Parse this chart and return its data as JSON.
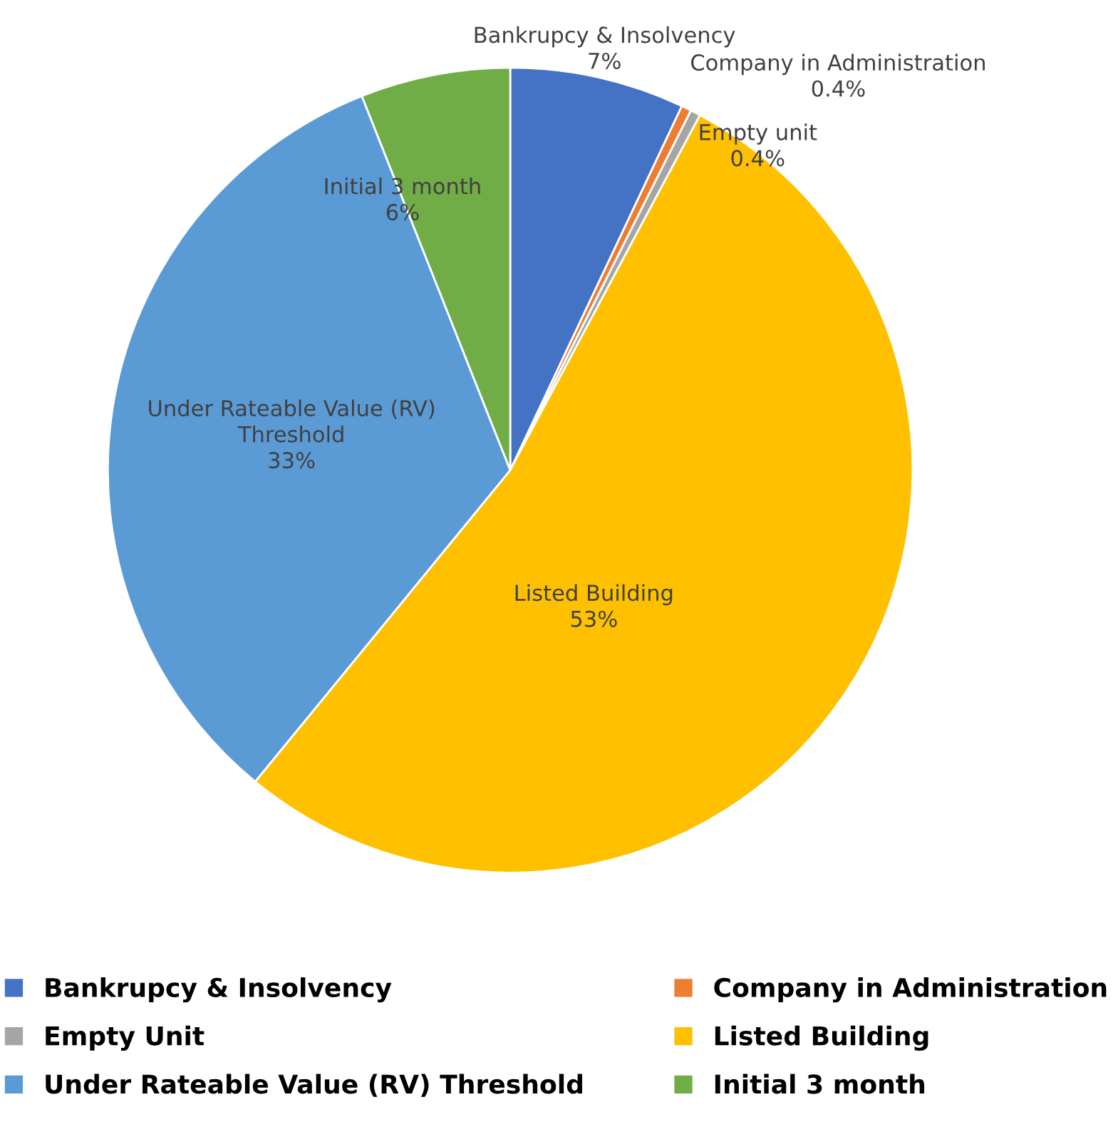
{
  "chart_data": {
    "type": "pie",
    "categories": [
      "Bankrupcy & Insolvency",
      "Company in Administration",
      "Empty Unit",
      "Listed Building",
      "Under Rateable Value (RV) Threshold",
      "Initial 3 month"
    ],
    "values": [
      7,
      0.4,
      0.4,
      53,
      33,
      6
    ],
    "colors": [
      "#4472c4",
      "#ed7d31",
      "#a5a5a5",
      "#ffc000",
      "#5b9bd5",
      "#70ad47"
    ],
    "value_labels": [
      "Bankrupcy & Insolvency\n7%",
      "Company in Administration\n0.4%",
      "Empty unit\n0.4%",
      "Listed Building\n53%",
      "Under Rateable Value (RV)\nThreshold\n33%",
      "Initial 3 month\n6%"
    ],
    "legend": "bottom"
  }
}
